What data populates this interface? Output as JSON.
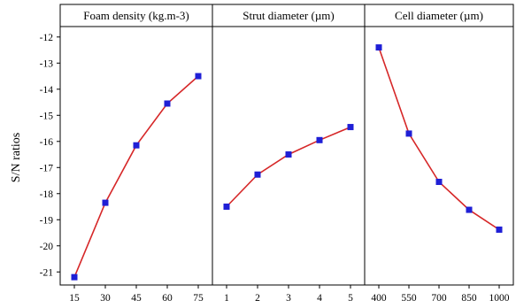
{
  "chart_data": {
    "type": "line",
    "ylabel": "S/N ratios",
    "ylim": [
      -21.5,
      -11.6
    ],
    "yticks": [
      -21,
      -20,
      -19,
      -18,
      -17,
      -16,
      -15,
      -14,
      -13,
      -12
    ],
    "colors": {
      "line": "#d62728",
      "marker": "#1f1fd6",
      "frame": "#000000",
      "background": "#ffffff"
    },
    "panels": [
      {
        "title": "Foam density (kg.m-3)",
        "categories": [
          "15",
          "30",
          "45",
          "60",
          "75"
        ],
        "values": [
          -21.2,
          -18.35,
          -16.15,
          -14.55,
          -13.5
        ]
      },
      {
        "title": "Strut diameter (µm)",
        "categories": [
          "1",
          "2",
          "3",
          "4",
          "5"
        ],
        "values": [
          -18.5,
          -17.27,
          -16.5,
          -15.95,
          -15.45
        ]
      },
      {
        "title": "Cell diameter (µm)",
        "categories": [
          "400",
          "550",
          "700",
          "850",
          "1000"
        ],
        "values": [
          -12.4,
          -15.7,
          -17.55,
          -18.62,
          -19.38
        ]
      }
    ]
  }
}
